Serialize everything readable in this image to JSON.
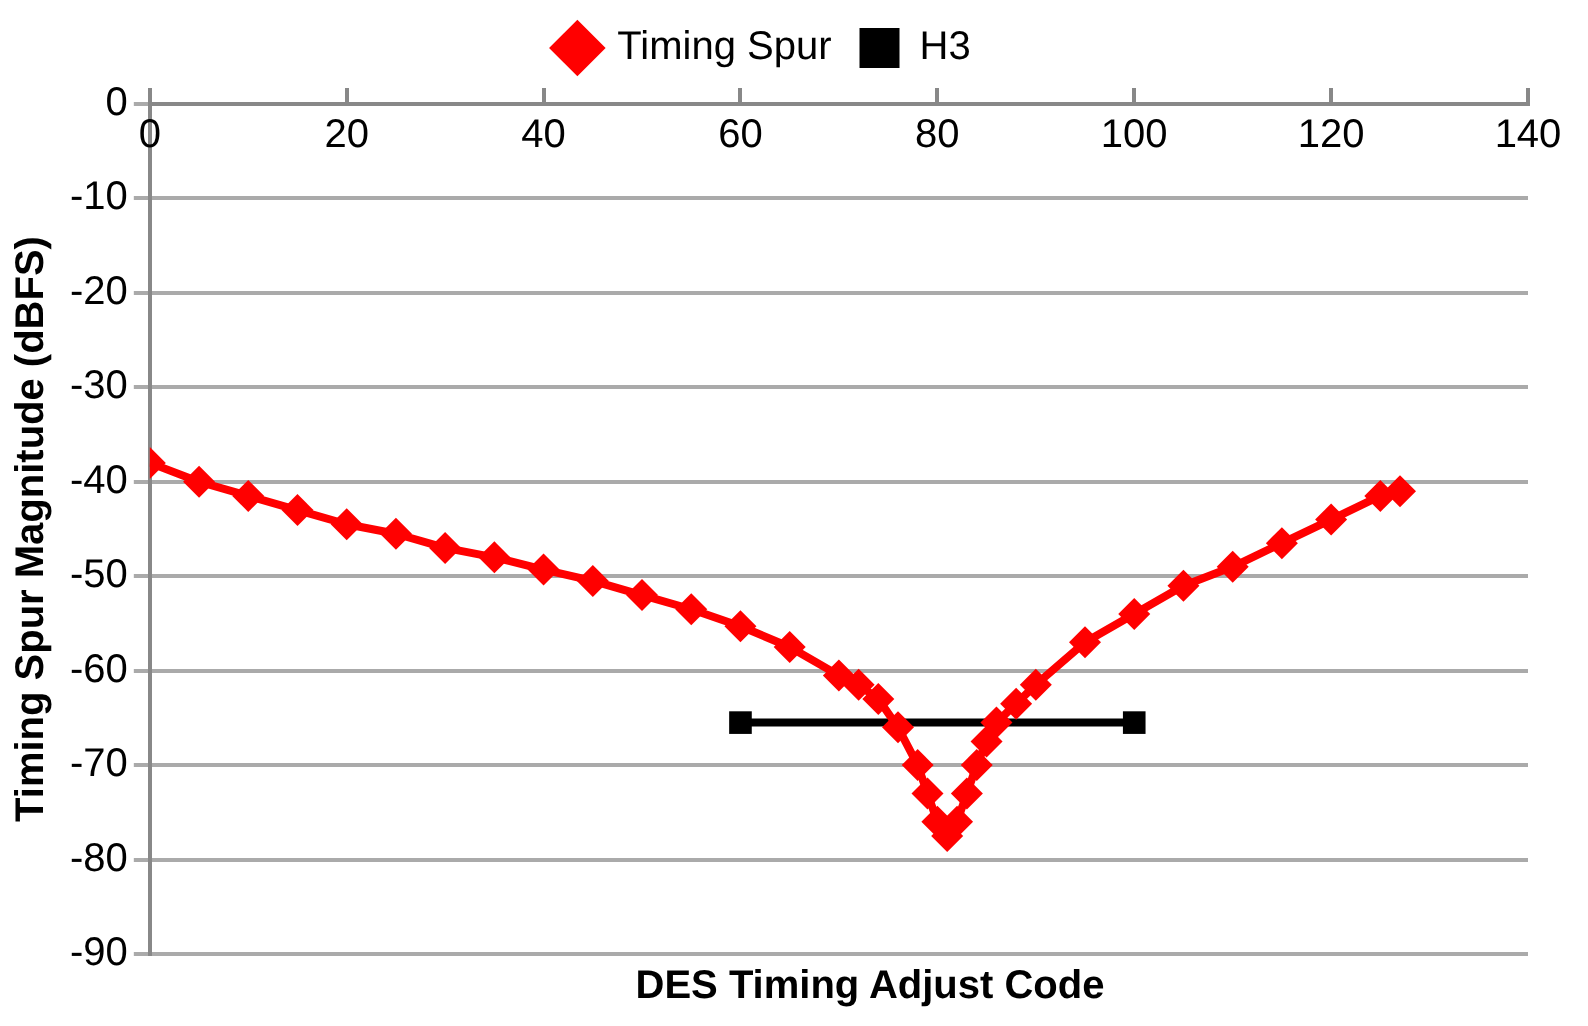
{
  "chart_data": {
    "type": "line",
    "xlabel": "DES Timing Adjust Code",
    "ylabel": "Timing Spur Magnitude (dBFS)",
    "xlim": [
      0,
      140
    ],
    "xticks": [
      0,
      20,
      40,
      60,
      80,
      100,
      120,
      140
    ],
    "ylim": [
      -90,
      0
    ],
    "yticks": [
      -90,
      -80,
      -70,
      -60,
      -50,
      -40,
      -30,
      -20,
      -10,
      0
    ],
    "grid": "y",
    "legend": "top",
    "series": [
      {
        "name": "Timing Spur",
        "color": "#ff0000",
        "marker": "diamond",
        "x": [
          0,
          5,
          10,
          15,
          20,
          25,
          30,
          35,
          40,
          45,
          50,
          55,
          60,
          65,
          70,
          72,
          74,
          76,
          78,
          79,
          80,
          81,
          82,
          83,
          84,
          85,
          86,
          88,
          90,
          95,
          100,
          105,
          110,
          115,
          120,
          125,
          127
        ],
        "values": [
          -38,
          -40,
          -41.5,
          -43,
          -44.5,
          -45.5,
          -47,
          -48,
          -49.3,
          -50.5,
          -52,
          -53.5,
          -55.3,
          -57.5,
          -60.5,
          -61.5,
          -63,
          -66,
          -70,
          -73,
          -76,
          -77.5,
          -76,
          -73,
          -70,
          -67.5,
          -65.5,
          -63.5,
          -61.5,
          -57,
          -54,
          -51,
          -49,
          -46.5,
          -44,
          -41.5,
          -41
        ]
      },
      {
        "name": "H3",
        "color": "#000000",
        "marker": "square",
        "x": [
          60,
          100
        ],
        "values": [
          -65.5,
          -65.5
        ]
      }
    ]
  }
}
